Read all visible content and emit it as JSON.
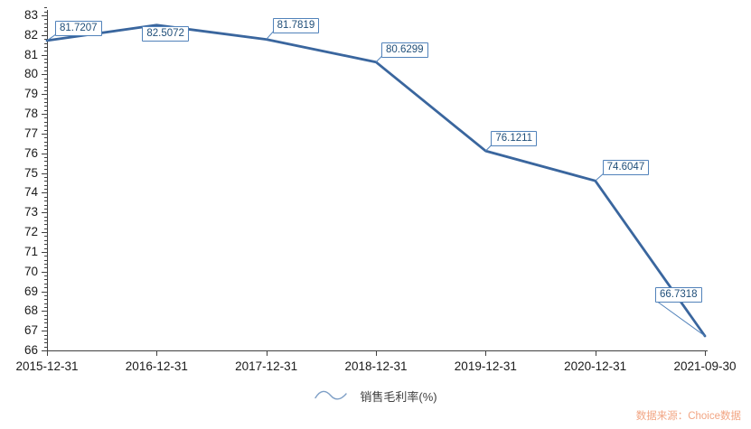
{
  "chart_data": {
    "type": "line",
    "title": "",
    "xlabel": "",
    "ylabel": "",
    "categories": [
      "2015-12-31",
      "2016-12-31",
      "2017-12-31",
      "2018-12-31",
      "2019-12-31",
      "2020-12-31",
      "2021-09-30"
    ],
    "series": [
      {
        "name": "销售毛利率(%)",
        "values": [
          81.7207,
          82.5072,
          81.7819,
          80.6299,
          76.1211,
          74.6047,
          66.7318
        ]
      }
    ],
    "point_labels": [
      "81.7207",
      "82.5072",
      "81.7819",
      "80.6299",
      "76.1211",
      "74.6047",
      "66.7318"
    ],
    "ylim": [
      66,
      83
    ],
    "ytick_step": 1,
    "yminor_step": 0.2,
    "grid": false,
    "legend_position": "bottom-center",
    "legend": "销售毛利率(%)",
    "source": "数据来源：Choice数据",
    "colors": {
      "line": "#3a669e",
      "label_border": "#5182ba",
      "label_text": "#1f4e79",
      "axis": "#404040",
      "tick_text": "#1a1a1a",
      "legend_text": "#404040",
      "legend_icon": "#7e9fc6",
      "source_text": "#f2a583"
    }
  }
}
